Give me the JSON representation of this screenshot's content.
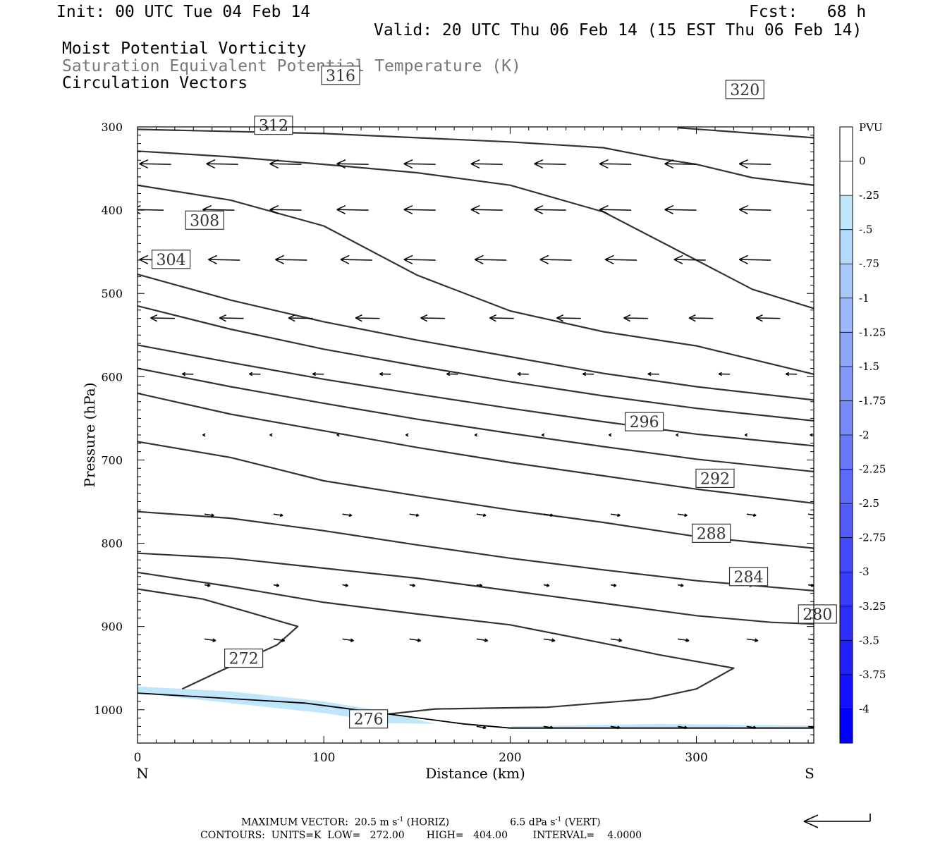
{
  "header": {
    "init": "Init: 00 UTC Tue 04 Feb 14",
    "fcst": "Fcst:   68 h",
    "valid": "Valid: 20 UTC Thu 06 Feb 14 (15 EST Thu 06 Feb 14)",
    "field1": "Moist Potential Vorticity",
    "field2": "Saturation Equivalent Potential Temperature (K)",
    "field3": "Circulation Vectors"
  },
  "footer": {
    "max_vector": "MAXIMUM VECTOR:  20.5 m s",
    "horiz": " (HORIZ)",
    "vert_val": "6.5 dPa s",
    "vert": " (VERT)",
    "contours": "CONTOURS:  UNITS=K  LOW=   272.00       HIGH=   404.00        INTERVAL=    4.0000",
    "exponent": "-1"
  },
  "colorbar": {
    "title": "PVU",
    "labels": [
      "0",
      "-.25",
      "-.5",
      "-.75",
      "-1",
      "-1.25",
      "-1.5",
      "-1.75",
      "-2",
      "-2.25",
      "-2.5",
      "-2.75",
      "-3",
      "-3.25",
      "-3.5",
      "-3.75",
      "-4"
    ],
    "colors": [
      "#ffffff",
      "#bfe6fb",
      "#b3d9fb",
      "#a6c8fa",
      "#9ab8fa",
      "#8ea8f9",
      "#8298f9",
      "#7689f9",
      "#6a79f9",
      "#5e6af9",
      "#525afa",
      "#454bfa",
      "#393cfb",
      "#2d2dfb",
      "#211ffc",
      "#1510fd",
      "#0000ff"
    ]
  },
  "chart_data": {
    "type": "contour",
    "xlabel": "Distance (km)",
    "ylabel": "Pressure (hPa)",
    "xlim": [
      0,
      363
    ],
    "ylim": [
      1040,
      300
    ],
    "x_ticks": [
      "0",
      "100",
      "200",
      "300"
    ],
    "y_ticks": [
      "300",
      "400",
      "500",
      "600",
      "700",
      "800",
      "900",
      "1000"
    ],
    "x_end_labels": {
      "left": "N",
      "right": "S"
    },
    "contour_color": "#333333",
    "contours": [
      {
        "value": 272,
        "label": "272",
        "label_at": [
          57,
          938
        ],
        "points": [
          [
            0,
            855
          ],
          [
            35,
            867
          ],
          [
            60,
            883
          ],
          [
            86,
            900
          ],
          [
            75,
            922
          ],
          [
            40,
            958
          ],
          [
            24,
            975
          ]
        ]
      },
      {
        "value": 276,
        "label": "276",
        "label_at": [
          124,
          1011
        ],
        "points": [
          [
            135,
            1005
          ],
          [
            160,
            999
          ],
          [
            220,
            997
          ],
          [
            275,
            987
          ],
          [
            300,
            975
          ],
          [
            320,
            950
          ],
          [
            280,
            934
          ],
          [
            250,
            920
          ],
          [
            200,
            898
          ],
          [
            150,
            885
          ],
          [
            100,
            871
          ],
          [
            50,
            852
          ],
          [
            0,
            835
          ]
        ]
      },
      {
        "value": 280,
        "label": "280",
        "label_at": [
          365,
          885
        ],
        "points": [
          [
            0,
            812
          ],
          [
            50,
            818
          ],
          [
            100,
            830
          ],
          [
            150,
            842
          ],
          [
            200,
            857
          ],
          [
            250,
            872
          ],
          [
            300,
            887
          ],
          [
            340,
            895
          ],
          [
            363,
            897
          ]
        ]
      },
      {
        "value": 284,
        "label": "284",
        "label_at": [
          328,
          840
        ],
        "points": [
          [
            0,
            762
          ],
          [
            50,
            770
          ],
          [
            100,
            785
          ],
          [
            150,
            802
          ],
          [
            200,
            818
          ],
          [
            250,
            832
          ],
          [
            300,
            845
          ],
          [
            363,
            857
          ]
        ]
      },
      {
        "value": 288,
        "label": "288",
        "label_at": [
          308,
          788
        ],
        "points": [
          [
            0,
            678
          ],
          [
            50,
            697
          ],
          [
            100,
            725
          ],
          [
            150,
            743
          ],
          [
            200,
            760
          ],
          [
            250,
            775
          ],
          [
            300,
            792
          ],
          [
            363,
            806
          ]
        ]
      },
      {
        "value": 292,
        "label": "292",
        "label_at": [
          310,
          722
        ],
        "points": [
          [
            0,
            620
          ],
          [
            50,
            645
          ],
          [
            100,
            665
          ],
          [
            150,
            685
          ],
          [
            200,
            703
          ],
          [
            250,
            719
          ],
          [
            300,
            735
          ],
          [
            363,
            752
          ]
        ]
      },
      {
        "value": 296,
        "label": "296",
        "label_at": [
          272,
          654
        ],
        "points": [
          [
            0,
            590
          ],
          [
            50,
            612
          ],
          [
            100,
            632
          ],
          [
            150,
            651
          ],
          [
            200,
            668
          ],
          [
            250,
            684
          ],
          [
            300,
            699
          ],
          [
            363,
            714
          ]
        ]
      },
      {
        "value": 300,
        "label": "",
        "label_at": null,
        "points": [
          [
            0,
            562
          ],
          [
            50,
            583
          ],
          [
            100,
            603
          ],
          [
            150,
            621
          ],
          [
            200,
            638
          ],
          [
            250,
            654
          ],
          [
            300,
            669
          ],
          [
            363,
            683
          ]
        ]
      },
      {
        "value": 304,
        "label": "304",
        "label_at": [
          18,
          459
        ],
        "points": [
          [
            0,
            515
          ],
          [
            50,
            543
          ],
          [
            100,
            567
          ],
          [
            150,
            587
          ],
          [
            200,
            606
          ],
          [
            250,
            623
          ],
          [
            300,
            638
          ],
          [
            363,
            653
          ]
        ]
      },
      {
        "value": 308,
        "label": "308",
        "label_at": [
          36,
          412
        ],
        "points": [
          [
            0,
            477
          ],
          [
            50,
            508
          ],
          [
            100,
            534
          ],
          [
            150,
            556
          ],
          [
            200,
            576
          ],
          [
            250,
            596
          ],
          [
            300,
            612
          ],
          [
            363,
            628
          ]
        ]
      },
      {
        "value": 312,
        "label": "312",
        "label_at": [
          73,
          298
        ],
        "points": [
          [
            0,
            370
          ],
          [
            50,
            388
          ],
          [
            100,
            419
          ],
          [
            150,
            478
          ],
          [
            200,
            521
          ],
          [
            250,
            546
          ],
          [
            300,
            563
          ],
          [
            363,
            597
          ]
        ]
      },
      {
        "value": 316,
        "label": "316",
        "label_at": [
          109,
          238
        ],
        "points": [
          [
            0,
            329
          ],
          [
            50,
            336
          ],
          [
            100,
            345
          ],
          [
            150,
            355
          ],
          [
            200,
            370
          ],
          [
            250,
            402
          ],
          [
            300,
            460
          ],
          [
            330,
            495
          ],
          [
            363,
            518
          ]
        ]
      },
      {
        "value": 320,
        "label": "320",
        "label_at": [
          326,
          255
        ],
        "points": [
          [
            0,
            303
          ],
          [
            100,
            308
          ],
          [
            200,
            318
          ],
          [
            250,
            325
          ],
          [
            280,
            338
          ],
          [
            300,
            345
          ],
          [
            330,
            361
          ],
          [
            363,
            370
          ]
        ]
      },
      {
        "value": 324,
        "label": "",
        "label_at": null,
        "points": [
          [
            290,
            301
          ],
          [
            363,
            313
          ]
        ]
      }
    ],
    "pv_shading": [
      {
        "value_range": [
          -0.25,
          0
        ],
        "points": [
          [
            0,
            972
          ],
          [
            50,
            978
          ],
          [
            100,
            990
          ],
          [
            130,
            1001
          ],
          [
            160,
            1017
          ],
          [
            135,
            1016
          ],
          [
            100,
            1004
          ],
          [
            50,
            992
          ],
          [
            0,
            980
          ]
        ]
      },
      {
        "value_range": [
          -0.25,
          0
        ],
        "points": [
          [
            200,
            1020
          ],
          [
            280,
            1017
          ],
          [
            363,
            1019
          ],
          [
            363,
            1023
          ],
          [
            280,
            1023
          ],
          [
            200,
            1023
          ]
        ]
      }
    ],
    "surface": [
      [
        0,
        980
      ],
      [
        90,
        992
      ],
      [
        175,
        1017
      ],
      [
        200,
        1022
      ],
      [
        363,
        1022
      ]
    ],
    "vectors_rows": [
      {
        "p": 345,
        "dx": -17,
        "xs": [
          18,
          54,
          88,
          124,
          160,
          196,
          230,
          265,
          300,
          340
        ]
      },
      {
        "p": 400,
        "dx": -17,
        "xs": [
          14,
          52,
          88,
          124,
          160,
          196,
          230,
          265,
          300,
          340
        ]
      },
      {
        "p": 460,
        "dx": -17,
        "xs": [
          18,
          55,
          91,
          126,
          160,
          198,
          233,
          268,
          305,
          340
        ]
      },
      {
        "p": 530,
        "dx": -13,
        "xs": [
          20,
          57,
          94,
          130,
          165,
          202,
          238,
          274,
          309,
          345
        ]
      },
      {
        "p": 597,
        "dx": -6,
        "xs": [
          30,
          66,
          100,
          136,
          172,
          210,
          245,
          280,
          318,
          354
        ]
      },
      {
        "p": 670,
        "dx": -1,
        "xs": [
          36,
          72,
          108,
          145,
          182,
          218,
          254,
          290,
          327,
          362
        ]
      },
      {
        "p": 765,
        "dx": 5,
        "xs": [
          36,
          73,
          110,
          146,
          182,
          218,
          254,
          290,
          327,
          360
        ]
      },
      {
        "p": 850,
        "dx": 3,
        "xs": [
          36,
          73,
          110,
          146,
          182,
          218,
          254,
          290,
          327,
          360
        ]
      },
      {
        "p": 915,
        "dx": 6,
        "xs": [
          36,
          73,
          110,
          146,
          182,
          218,
          254,
          290,
          327,
          360
        ]
      },
      {
        "p": 1020,
        "dx": 5,
        "xs": [
          182,
          218,
          254,
          290,
          327,
          360
        ]
      }
    ]
  }
}
